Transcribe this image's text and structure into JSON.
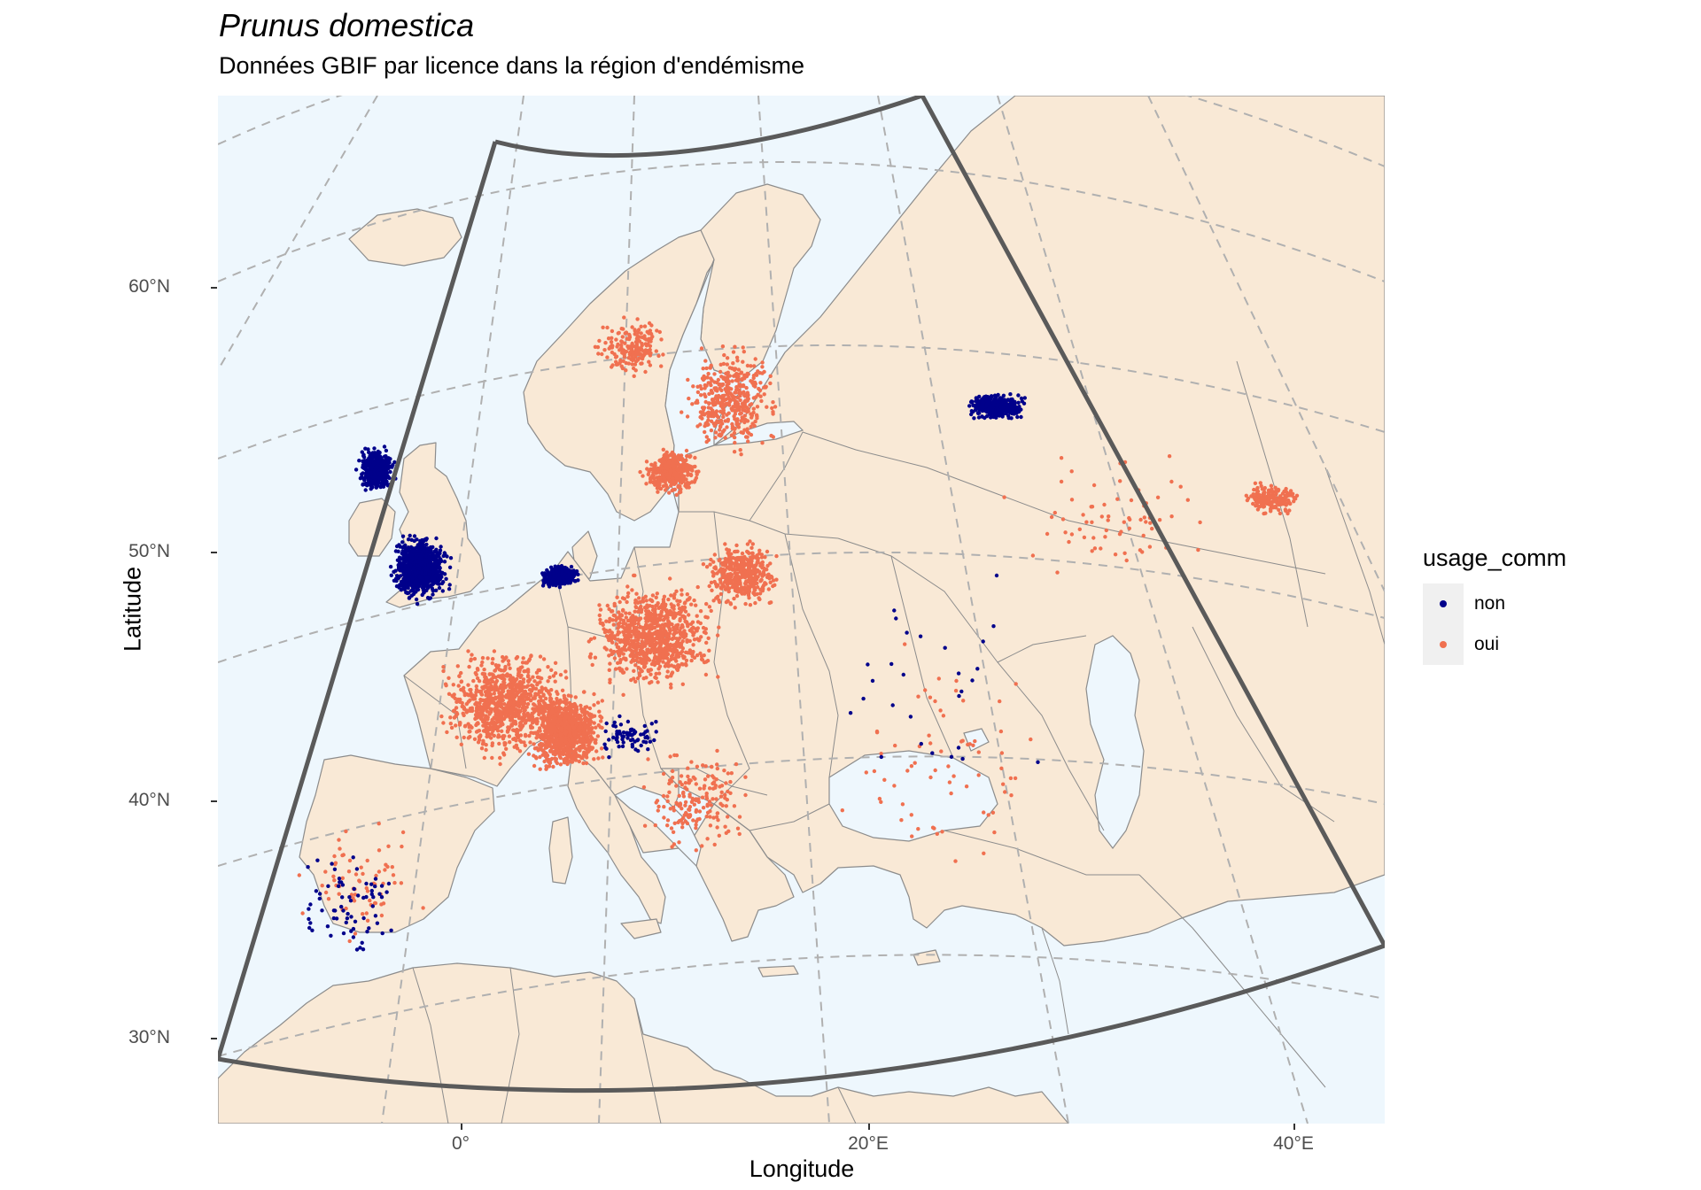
{
  "title": "Prunus domestica",
  "subtitle": "Données GBIF par licence dans la région d'endémisme",
  "x_axis": {
    "label": "Longitude",
    "ticks": [
      "0°",
      "20°E",
      "40°E"
    ]
  },
  "y_axis": {
    "label": "Latitude",
    "ticks": [
      "60°N",
      "50°N",
      "40°N",
      "30°N"
    ]
  },
  "legend": {
    "title": "usage_comm",
    "items": [
      {
        "label": "non",
        "color": "#00008b"
      },
      {
        "label": "oui",
        "color": "#f07050"
      }
    ]
  },
  "colors": {
    "sea": "#eef7fd",
    "land": "#f9e9d6",
    "border": "#8c8c8c",
    "graticule": "#b0b0b0",
    "region_outline": "#5a5a5a"
  },
  "chart_data": {
    "type": "scatter",
    "title": "Prunus domestica",
    "subtitle": "Données GBIF par licence dans la région d'endémisme",
    "xlabel": "Longitude",
    "ylabel": "Latitude",
    "series": [
      {
        "name": "oui",
        "color": "#f07050",
        "clusters": [
          {
            "lon": 2.5,
            "lat": 47.0,
            "spread": [
              3.5,
              2.5
            ],
            "density": "very high"
          },
          {
            "lon": 5.5,
            "lat": 45.8,
            "spread": [
              2.0,
              1.8
            ],
            "density": "very high"
          },
          {
            "lon": 9.5,
            "lat": 49.5,
            "spread": [
              3.5,
              2.5
            ],
            "density": "very high"
          },
          {
            "lon": 13.5,
            "lat": 52.0,
            "spread": [
              2.0,
              1.5
            ],
            "density": "high"
          },
          {
            "lon": 12.5,
            "lat": 59.0,
            "spread": [
              2.5,
              2.5
            ],
            "density": "high"
          },
          {
            "lon": 10.0,
            "lat": 56.0,
            "spread": [
              1.5,
              1.0
            ],
            "density": "high"
          },
          {
            "lon": 12.0,
            "lat": 43.0,
            "spread": [
              3.0,
              2.5
            ],
            "density": "medium"
          },
          {
            "lon": 8.0,
            "lat": 61.0,
            "spread": [
              2.0,
              1.5
            ],
            "density": "medium"
          },
          {
            "lon": 37.5,
            "lat": 55.8,
            "spread": [
              1.5,
              0.8
            ],
            "density": "medium"
          },
          {
            "lon": -4.5,
            "lat": 40.0,
            "spread": [
              4.0,
              3.0
            ],
            "density": "low"
          },
          {
            "lon": 25.0,
            "lat": 45.0,
            "spread": [
              7.0,
              5.0
            ],
            "density": "low"
          },
          {
            "lon": 30.0,
            "lat": 55.0,
            "spread": [
              6.0,
              3.0
            ],
            "density": "low"
          }
        ]
      },
      {
        "name": "non",
        "color": "#00008b",
        "clusters": [
          {
            "lon": -1.5,
            "lat": 52.5,
            "spread": [
              1.5,
              1.5
            ],
            "density": "very high"
          },
          {
            "lon": -3.5,
            "lat": 56.5,
            "spread": [
              1.0,
              1.0
            ],
            "density": "high"
          },
          {
            "lon": 5.0,
            "lat": 52.0,
            "spread": [
              1.0,
              0.5
            ],
            "density": "high"
          },
          {
            "lon": 24.5,
            "lat": 59.0,
            "spread": [
              1.5,
              0.6
            ],
            "density": "high"
          },
          {
            "lon": -5.0,
            "lat": 39.5,
            "spread": [
              3.5,
              3.0
            ],
            "density": "low"
          },
          {
            "lon": 8.5,
            "lat": 45.5,
            "spread": [
              2.0,
              1.0
            ],
            "density": "low"
          },
          {
            "lon": 23.0,
            "lat": 48.0,
            "spread": [
              6.0,
              5.0
            ],
            "density": "very low"
          }
        ]
      }
    ]
  }
}
